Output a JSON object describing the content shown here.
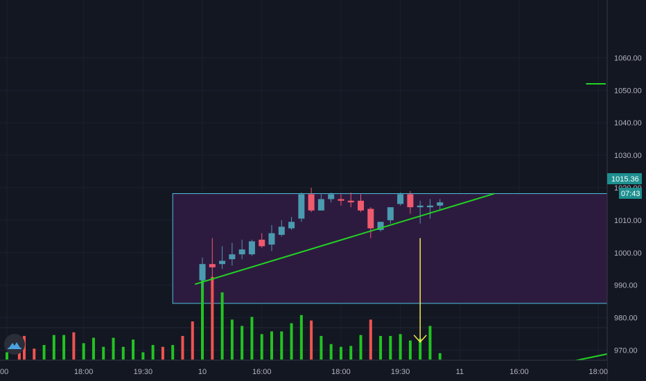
{
  "colors": {
    "background": "#131722",
    "up": "#4a9bb0",
    "down": "#ef5a6f",
    "vol_up": "#22c322",
    "vol_down": "#ef5350",
    "trendline": "#22d422",
    "box_border": "#4ec3e0",
    "box_fill": "#2d1b3f",
    "arrow": "#f5e84b",
    "price_tag": "#1e8f8f",
    "grid": "#1c2030",
    "axis_line": "#363a45",
    "logo": "#4aa3df"
  },
  "badges": {
    "last_price": "1015.36",
    "countdown": "07:43"
  },
  "logo_icon": "tradingview-cloud-icon",
  "chart_data": {
    "type": "candlestick",
    "title": "",
    "xlabel": "",
    "ylabel": "",
    "ylim": [
      960.5,
      1077.8
    ],
    "y_ticks": [
      "1060.00",
      "1050.00",
      "1040.00",
      "1030.00",
      "1020.00",
      "1010.00",
      "1000.00",
      "990.00",
      "980.00",
      "970.00"
    ],
    "y_tick_values": [
      1060,
      1050,
      1040,
      1030,
      1020,
      1010,
      1000,
      990,
      980,
      970
    ],
    "x_range": [
      0,
      125
    ],
    "x_ticks": [
      {
        "label": "00",
        "x": 0
      },
      {
        "label": "18:00",
        "x": 15.5
      },
      {
        "label": "19:30",
        "x": 27.5
      },
      {
        "label": "10",
        "x": 39.5
      },
      {
        "label": "16:00",
        "x": 51.5
      },
      {
        "label": "18:00",
        "x": 67.5
      },
      {
        "label": "19:30",
        "x": 79.5
      },
      {
        "label": "11",
        "x": 91.5
      },
      {
        "label": "16:00",
        "x": 103.5
      },
      {
        "label": "18:00",
        "x": 119.5
      }
    ],
    "candles": [
      {
        "x": 39.5,
        "o": 991.5,
        "h": 998.5,
        "l": 989.0,
        "c": 996.5
      },
      {
        "x": 41.5,
        "o": 996.5,
        "h": 1004.5,
        "l": 989.5,
        "c": 995.5
      },
      {
        "x": 43.5,
        "o": 996.5,
        "h": 1002.0,
        "l": 995.0,
        "c": 997.5
      },
      {
        "x": 45.5,
        "o": 998.0,
        "h": 1003.0,
        "l": 996.0,
        "c": 999.5
      },
      {
        "x": 47.5,
        "o": 999.5,
        "h": 1004.0,
        "l": 998.0,
        "c": 1001.0
      },
      {
        "x": 49.5,
        "o": 999.5,
        "h": 1004.0,
        "l": 999.0,
        "c": 1003.5
      },
      {
        "x": 51.5,
        "o": 1004.0,
        "h": 1006.0,
        "l": 1001.5,
        "c": 1002.0
      },
      {
        "x": 53.5,
        "o": 1002.5,
        "h": 1008.5,
        "l": 1000.5,
        "c": 1006.0
      },
      {
        "x": 55.5,
        "o": 1005.5,
        "h": 1010.0,
        "l": 1005.0,
        "c": 1008.0
      },
      {
        "x": 57.5,
        "o": 1007.5,
        "h": 1011.0,
        "l": 1007.0,
        "c": 1009.5
      },
      {
        "x": 59.5,
        "o": 1010.5,
        "h": 1018.5,
        "l": 1009.5,
        "c": 1018.0
      },
      {
        "x": 61.5,
        "o": 1018.0,
        "h": 1020.0,
        "l": 1012.5,
        "c": 1013.0
      },
      {
        "x": 63.5,
        "o": 1013.0,
        "h": 1018.0,
        "l": 1013.0,
        "c": 1016.5
      },
      {
        "x": 65.5,
        "o": 1016.5,
        "h": 1018.5,
        "l": 1015.5,
        "c": 1018.0
      },
      {
        "x": 67.5,
        "o": 1016.5,
        "h": 1018.0,
        "l": 1014.5,
        "c": 1016.0
      },
      {
        "x": 69.5,
        "o": 1016.0,
        "h": 1018.5,
        "l": 1014.0,
        "c": 1015.5
      },
      {
        "x": 71.5,
        "o": 1016.0,
        "h": 1018.0,
        "l": 1012.5,
        "c": 1013.0
      },
      {
        "x": 73.5,
        "o": 1013.5,
        "h": 1014.0,
        "l": 1004.5,
        "c": 1007.5
      },
      {
        "x": 75.5,
        "o": 1007.0,
        "h": 1009.5,
        "l": 1006.5,
        "c": 1009.5
      },
      {
        "x": 77.5,
        "o": 1010.0,
        "h": 1014.0,
        "l": 1009.0,
        "c": 1014.0
      },
      {
        "x": 79.5,
        "o": 1015.0,
        "h": 1018.5,
        "l": 1014.5,
        "c": 1018.0
      },
      {
        "x": 81.5,
        "o": 1018.0,
        "h": 1019.0,
        "l": 1012.0,
        "c": 1014.0
      },
      {
        "x": 83.5,
        "o": 1014.0,
        "h": 1016.0,
        "l": 1009.0,
        "c": 1014.5
      },
      {
        "x": 85.5,
        "o": 1014.0,
        "h": 1016.5,
        "l": 1010.5,
        "c": 1014.5
      },
      {
        "x": 87.5,
        "o": 1014.5,
        "h": 1016.5,
        "l": 1013.0,
        "c": 1015.5
      }
    ],
    "volume_scale_max": 100,
    "volumes": [
      {
        "x": 0,
        "v": 8,
        "dir": "up"
      },
      {
        "x": 2.5,
        "v": 12,
        "dir": "down"
      },
      {
        "x": 3.5,
        "v": 26,
        "dir": "down"
      },
      {
        "x": 5.5,
        "v": 12,
        "dir": "down"
      },
      {
        "x": 7.5,
        "v": 16,
        "dir": "up"
      },
      {
        "x": 9.5,
        "v": 27,
        "dir": "up"
      },
      {
        "x": 11.5,
        "v": 27,
        "dir": "up"
      },
      {
        "x": 13.5,
        "v": 30,
        "dir": "down"
      },
      {
        "x": 15.5,
        "v": 18,
        "dir": "up"
      },
      {
        "x": 17.5,
        "v": 24,
        "dir": "up"
      },
      {
        "x": 19.5,
        "v": 14,
        "dir": "up"
      },
      {
        "x": 21.5,
        "v": 24,
        "dir": "up"
      },
      {
        "x": 23.5,
        "v": 14,
        "dir": "up"
      },
      {
        "x": 25.5,
        "v": 22,
        "dir": "up"
      },
      {
        "x": 27.5,
        "v": 8,
        "dir": "up"
      },
      {
        "x": 29.5,
        "v": 16,
        "dir": "up"
      },
      {
        "x": 31.5,
        "v": 14,
        "dir": "down"
      },
      {
        "x": 33.5,
        "v": 16,
        "dir": "up"
      },
      {
        "x": 35.5,
        "v": 26,
        "dir": "down"
      },
      {
        "x": 37.5,
        "v": 42,
        "dir": "down"
      },
      {
        "x": 39.5,
        "v": 100,
        "dir": "up"
      },
      {
        "x": 41.5,
        "v": 91,
        "dir": "down"
      },
      {
        "x": 43.5,
        "v": 74,
        "dir": "up"
      },
      {
        "x": 45.5,
        "v": 44,
        "dir": "up"
      },
      {
        "x": 47.5,
        "v": 37,
        "dir": "up"
      },
      {
        "x": 49.5,
        "v": 47,
        "dir": "up"
      },
      {
        "x": 51.5,
        "v": 28,
        "dir": "up"
      },
      {
        "x": 53.5,
        "v": 31,
        "dir": "up"
      },
      {
        "x": 55.5,
        "v": 31,
        "dir": "up"
      },
      {
        "x": 57.5,
        "v": 40,
        "dir": "up"
      },
      {
        "x": 59.5,
        "v": 49,
        "dir": "up"
      },
      {
        "x": 61.5,
        "v": 43,
        "dir": "down"
      },
      {
        "x": 63.5,
        "v": 26,
        "dir": "up"
      },
      {
        "x": 65.5,
        "v": 17,
        "dir": "up"
      },
      {
        "x": 67.5,
        "v": 14,
        "dir": "up"
      },
      {
        "x": 69.5,
        "v": 15,
        "dir": "up"
      },
      {
        "x": 71.5,
        "v": 27,
        "dir": "up"
      },
      {
        "x": 73.5,
        "v": 44,
        "dir": "down"
      },
      {
        "x": 75.5,
        "v": 26,
        "dir": "up"
      },
      {
        "x": 77.5,
        "v": 26,
        "dir": "up"
      },
      {
        "x": 79.5,
        "v": 28,
        "dir": "up"
      },
      {
        "x": 81.5,
        "v": 21,
        "dir": "up"
      },
      {
        "x": 83.5,
        "v": 23,
        "dir": "up"
      },
      {
        "x": 85.5,
        "v": 37,
        "dir": "up"
      },
      {
        "x": 87.5,
        "v": 7,
        "dir": "up"
      }
    ],
    "annotations": {
      "rectangle": {
        "x1": 33.5,
        "x2": 125,
        "y_top": 1018.2,
        "y_bottom": 984.4
      },
      "trendline": {
        "x1": 38,
        "y1": 990.3,
        "x2": 98.5,
        "y2": 1018.2
      },
      "lower_trendline": {
        "x1": 95,
        "y1": 960.5,
        "x2": 125,
        "y2": 970.0
      },
      "arrow": {
        "x": 83.5,
        "y_from": 1004.5,
        "y_to": 972.5
      },
      "level_marker": {
        "x1": 117,
        "x2": 121,
        "y": 1052.0
      }
    }
  }
}
